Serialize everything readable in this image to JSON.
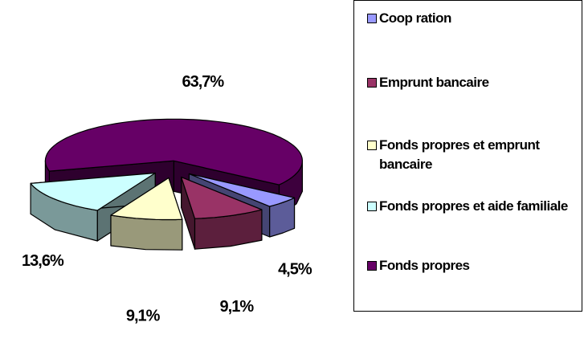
{
  "chart_data": {
    "type": "pie",
    "categories": [
      "Coop ration",
      "Emprunt bancaire",
      "Fonds propres et emprunt bancaire",
      "Fonds propres et aide familiale",
      "Fonds propres"
    ],
    "values": [
      4.5,
      9.1,
      9.1,
      13.6,
      63.7
    ],
    "value_labels": [
      "4,5%",
      "9,1%",
      "9,1%",
      "13,6%",
      "63,7%"
    ],
    "colors": [
      "#9999ff",
      "#993366",
      "#ffffcc",
      "#ccffff",
      "#660066"
    ]
  }
}
